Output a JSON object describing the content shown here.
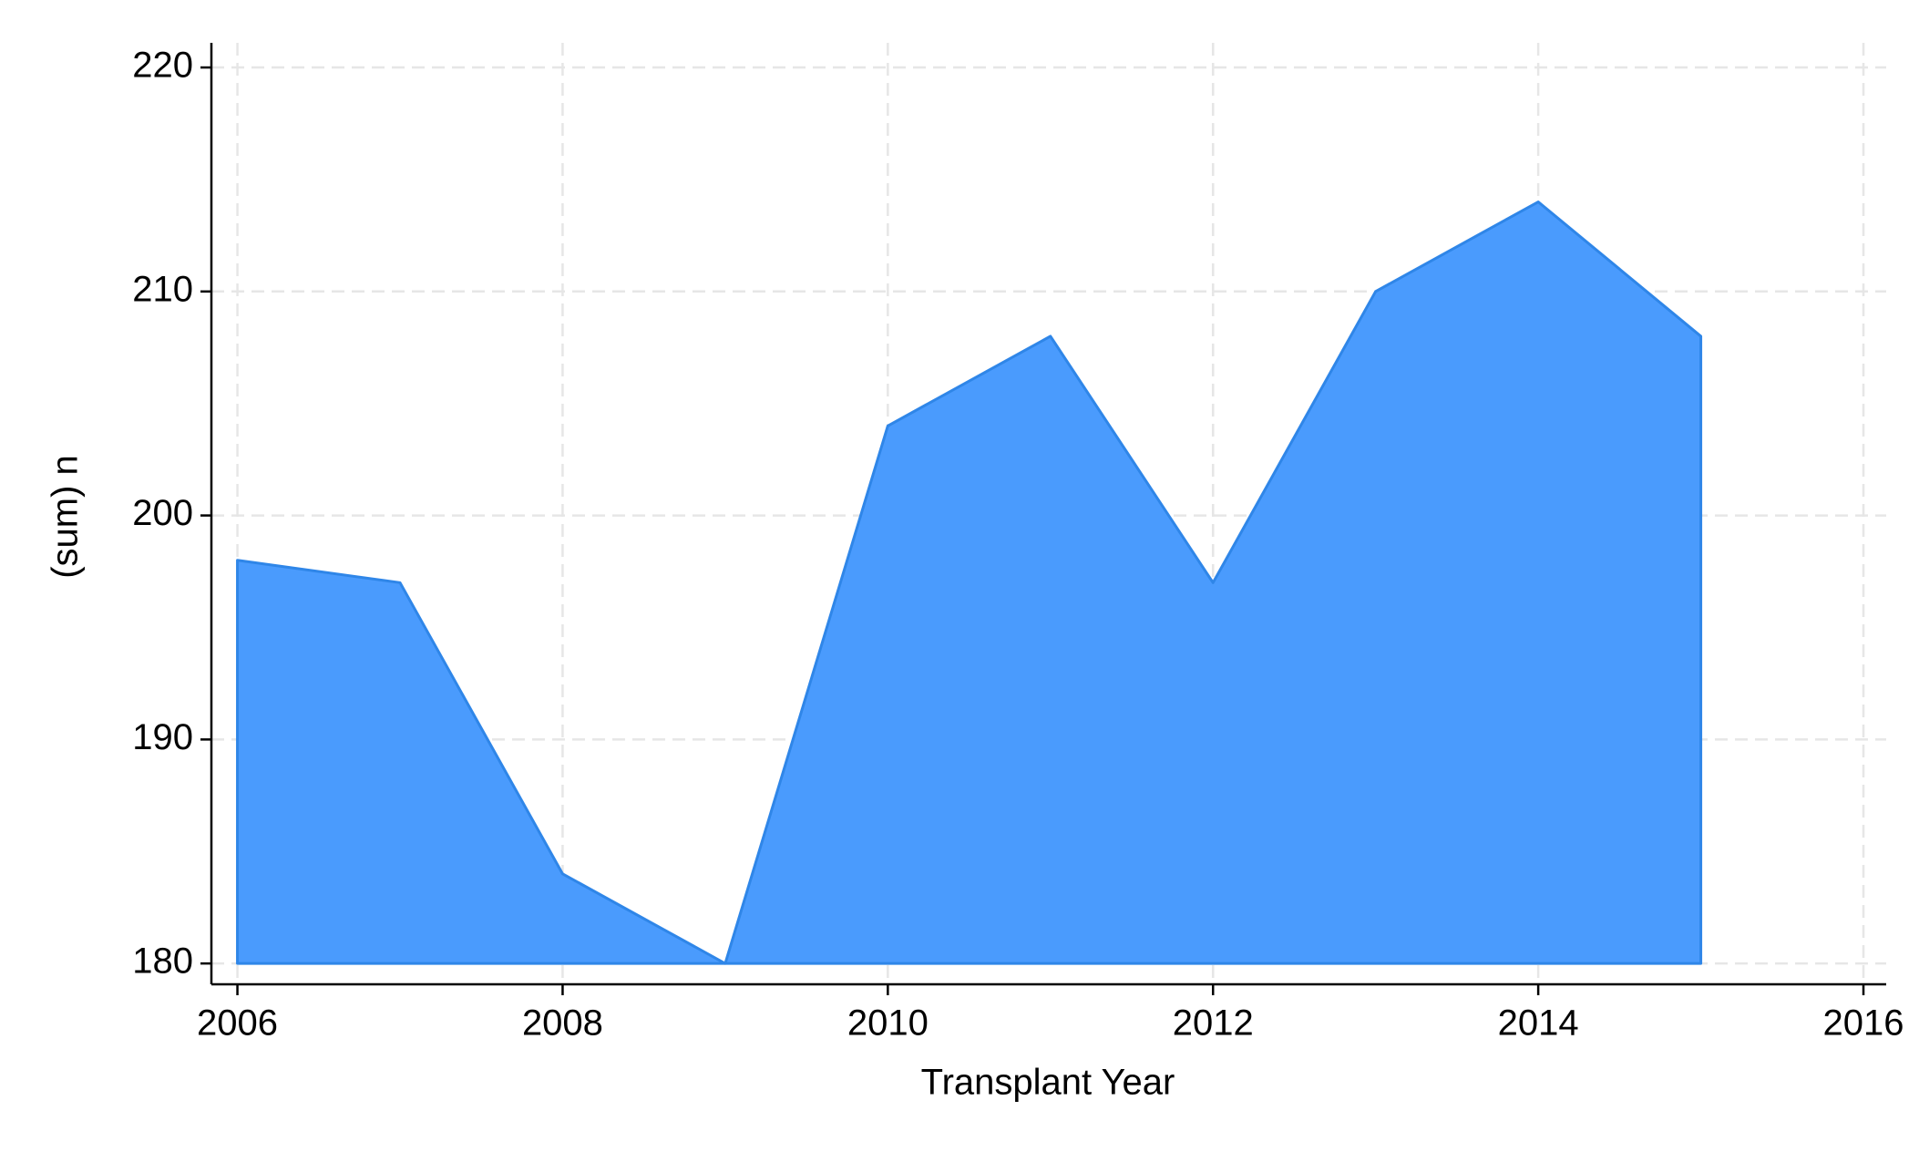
{
  "chart_data": {
    "type": "area",
    "x_label": "Transplant Year",
    "y_label": "(sum) n",
    "x": [
      2006,
      2007,
      2008,
      2009,
      2010,
      2011,
      2012,
      2013,
      2014,
      2015
    ],
    "values": [
      198,
      197,
      184,
      180,
      204,
      208,
      197,
      210,
      214,
      208
    ],
    "color": "#4a9bfd",
    "xlim": [
      2005.84,
      2016.14
    ],
    "xticks": [
      2006,
      2008,
      2010,
      2012,
      2014,
      2016
    ],
    "ylim": [
      179.07,
      221.1
    ],
    "yticks": [
      180,
      190,
      200,
      210,
      220
    ],
    "grid": true
  }
}
